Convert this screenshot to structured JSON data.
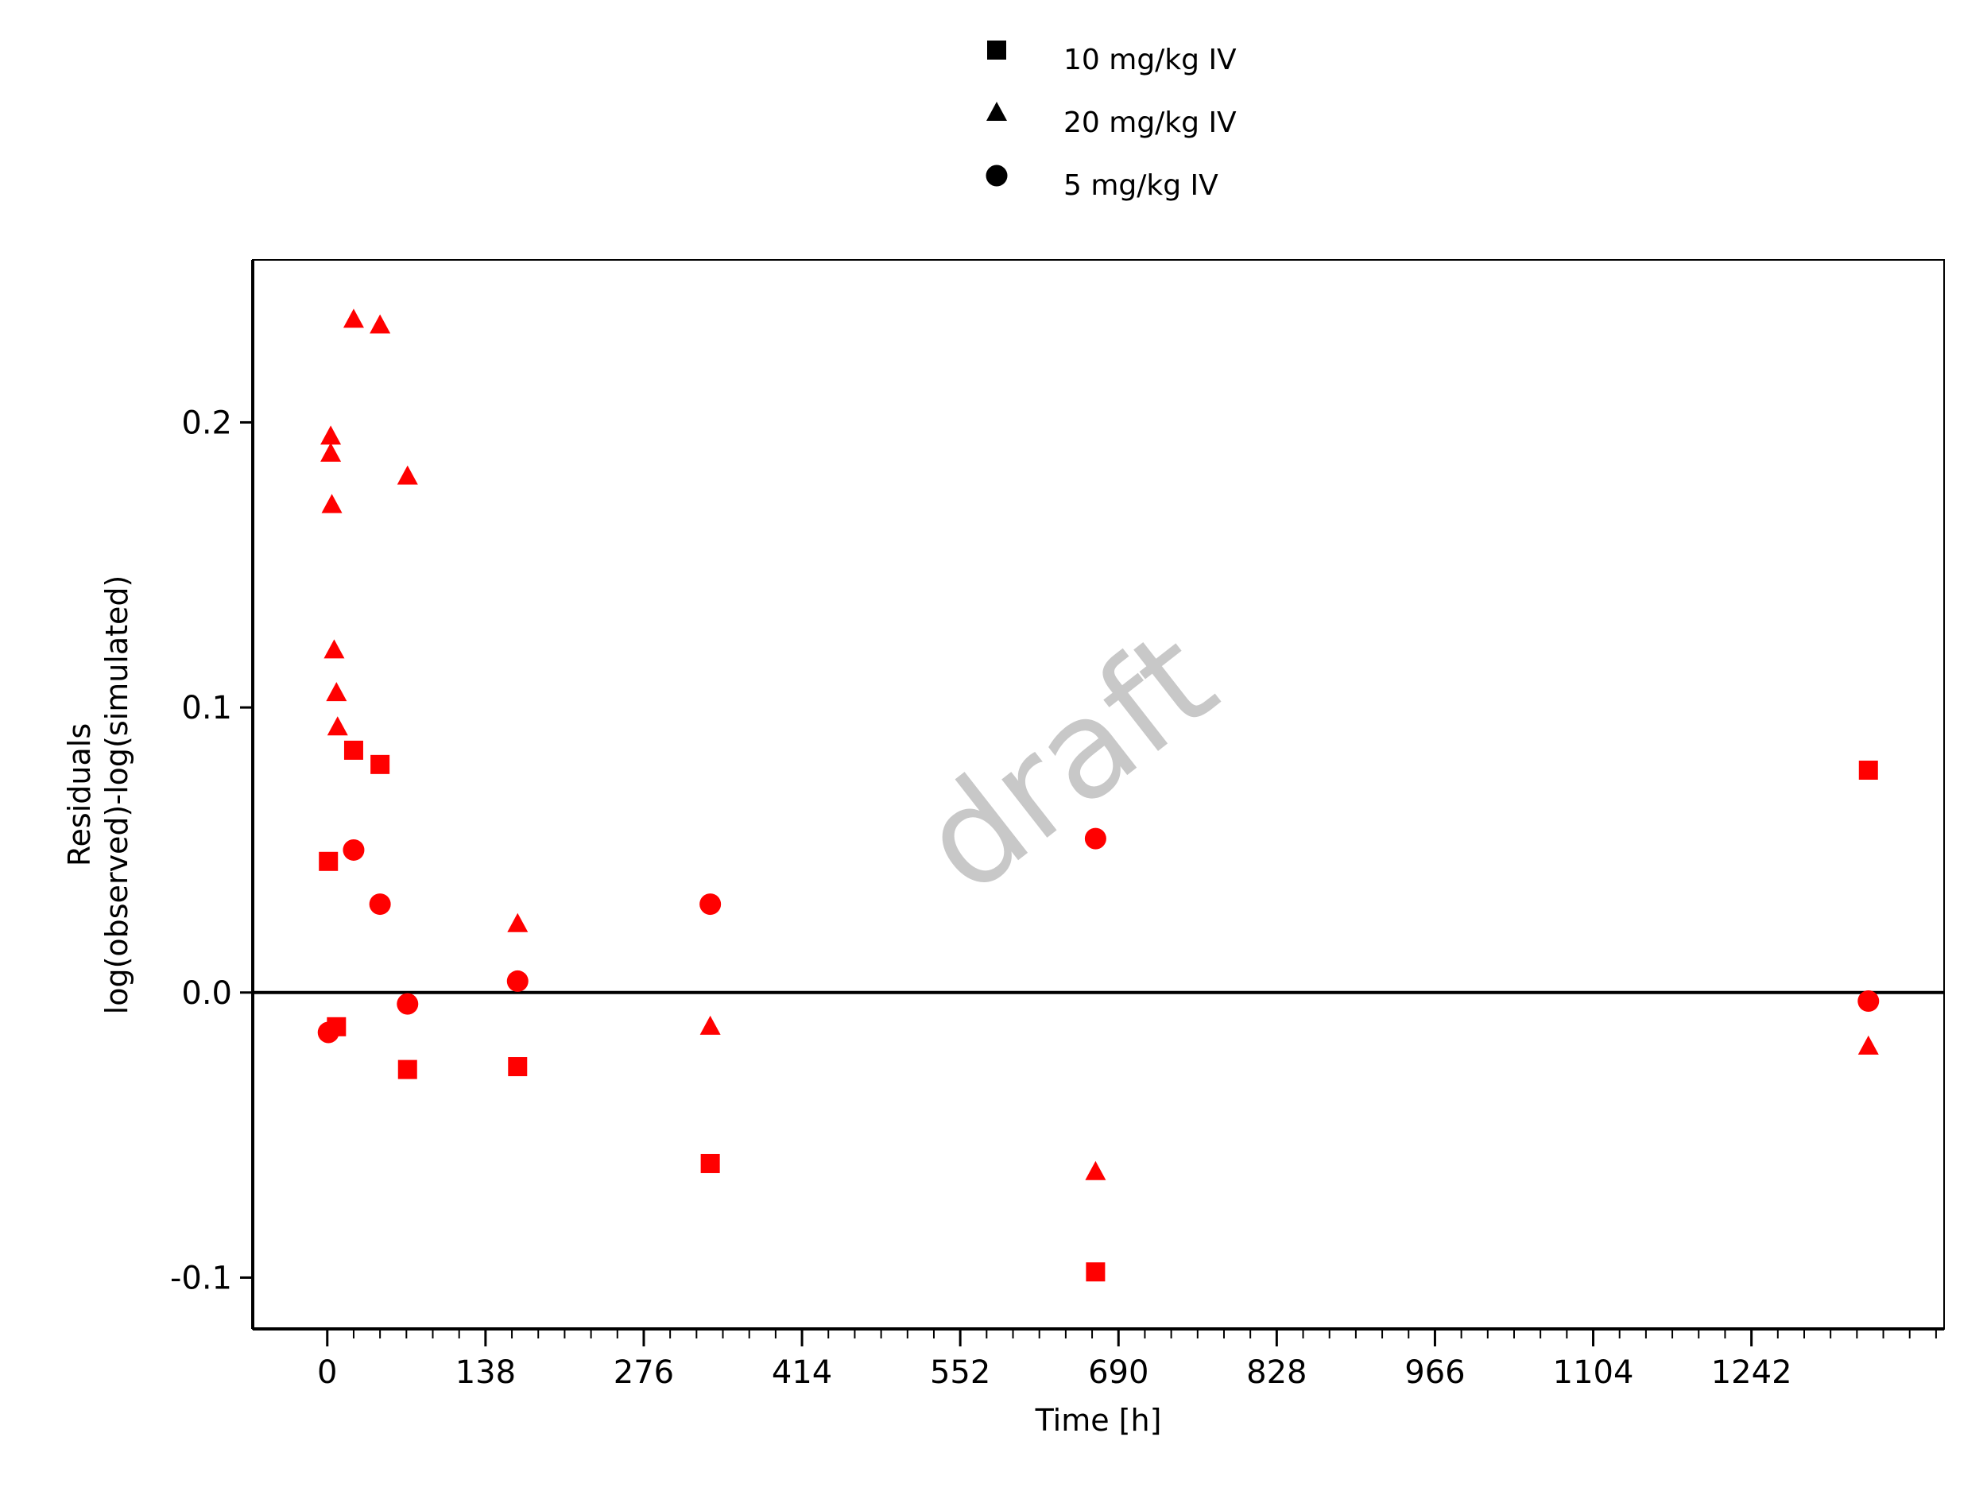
{
  "chart_data": {
    "type": "scatter",
    "title": "",
    "xlabel": "Time [h]",
    "ylabel_lines": [
      "Residuals",
      "log(observed)-log(simulated)"
    ],
    "watermark": "draft",
    "xlim": [
      -65,
      1410
    ],
    "ylim": [
      -0.118,
      0.257
    ],
    "x_ticks": [
      0,
      138,
      276,
      414,
      552,
      690,
      828,
      966,
      1104,
      1242
    ],
    "x_tick_labels": [
      "0",
      "138",
      "276",
      "414",
      "552",
      "690",
      "828",
      "966",
      "1104",
      "1242"
    ],
    "x_minor_step": 23,
    "y_ticks": [
      -0.1,
      0.0,
      0.1,
      0.2
    ],
    "y_tick_labels": [
      "-0.1",
      "0.0",
      "0.1",
      "0.2"
    ],
    "reference_line_y": 0,
    "legend_position": "top-center",
    "marker_color": "#ff0000",
    "series": [
      {
        "name": "10 mg/kg IV",
        "marker": "square",
        "points": [
          [
            1,
            0.046
          ],
          [
            8,
            -0.012
          ],
          [
            23,
            0.085
          ],
          [
            46,
            0.08
          ],
          [
            70,
            -0.027
          ],
          [
            166,
            -0.026
          ],
          [
            334,
            -0.06
          ],
          [
            670,
            -0.098
          ],
          [
            1344,
            0.078
          ]
        ]
      },
      {
        "name": "20 mg/kg IV",
        "marker": "triangle",
        "points": [
          [
            3,
            0.195
          ],
          [
            3,
            0.189
          ],
          [
            4,
            0.171
          ],
          [
            6,
            0.12
          ],
          [
            8,
            0.105
          ],
          [
            9,
            0.093
          ],
          [
            23,
            0.236
          ],
          [
            46,
            0.234
          ],
          [
            70,
            0.181
          ],
          [
            166,
            0.024
          ],
          [
            334,
            -0.012
          ],
          [
            670,
            -0.063
          ],
          [
            1344,
            -0.019
          ]
        ]
      },
      {
        "name": "5 mg/kg IV",
        "marker": "circle",
        "points": [
          [
            1,
            -0.014
          ],
          [
            23,
            0.05
          ],
          [
            46,
            0.031
          ],
          [
            70,
            -0.004
          ],
          [
            166,
            0.004
          ],
          [
            334,
            0.031
          ],
          [
            670,
            0.054
          ],
          [
            1344,
            -0.003
          ]
        ]
      }
    ]
  }
}
